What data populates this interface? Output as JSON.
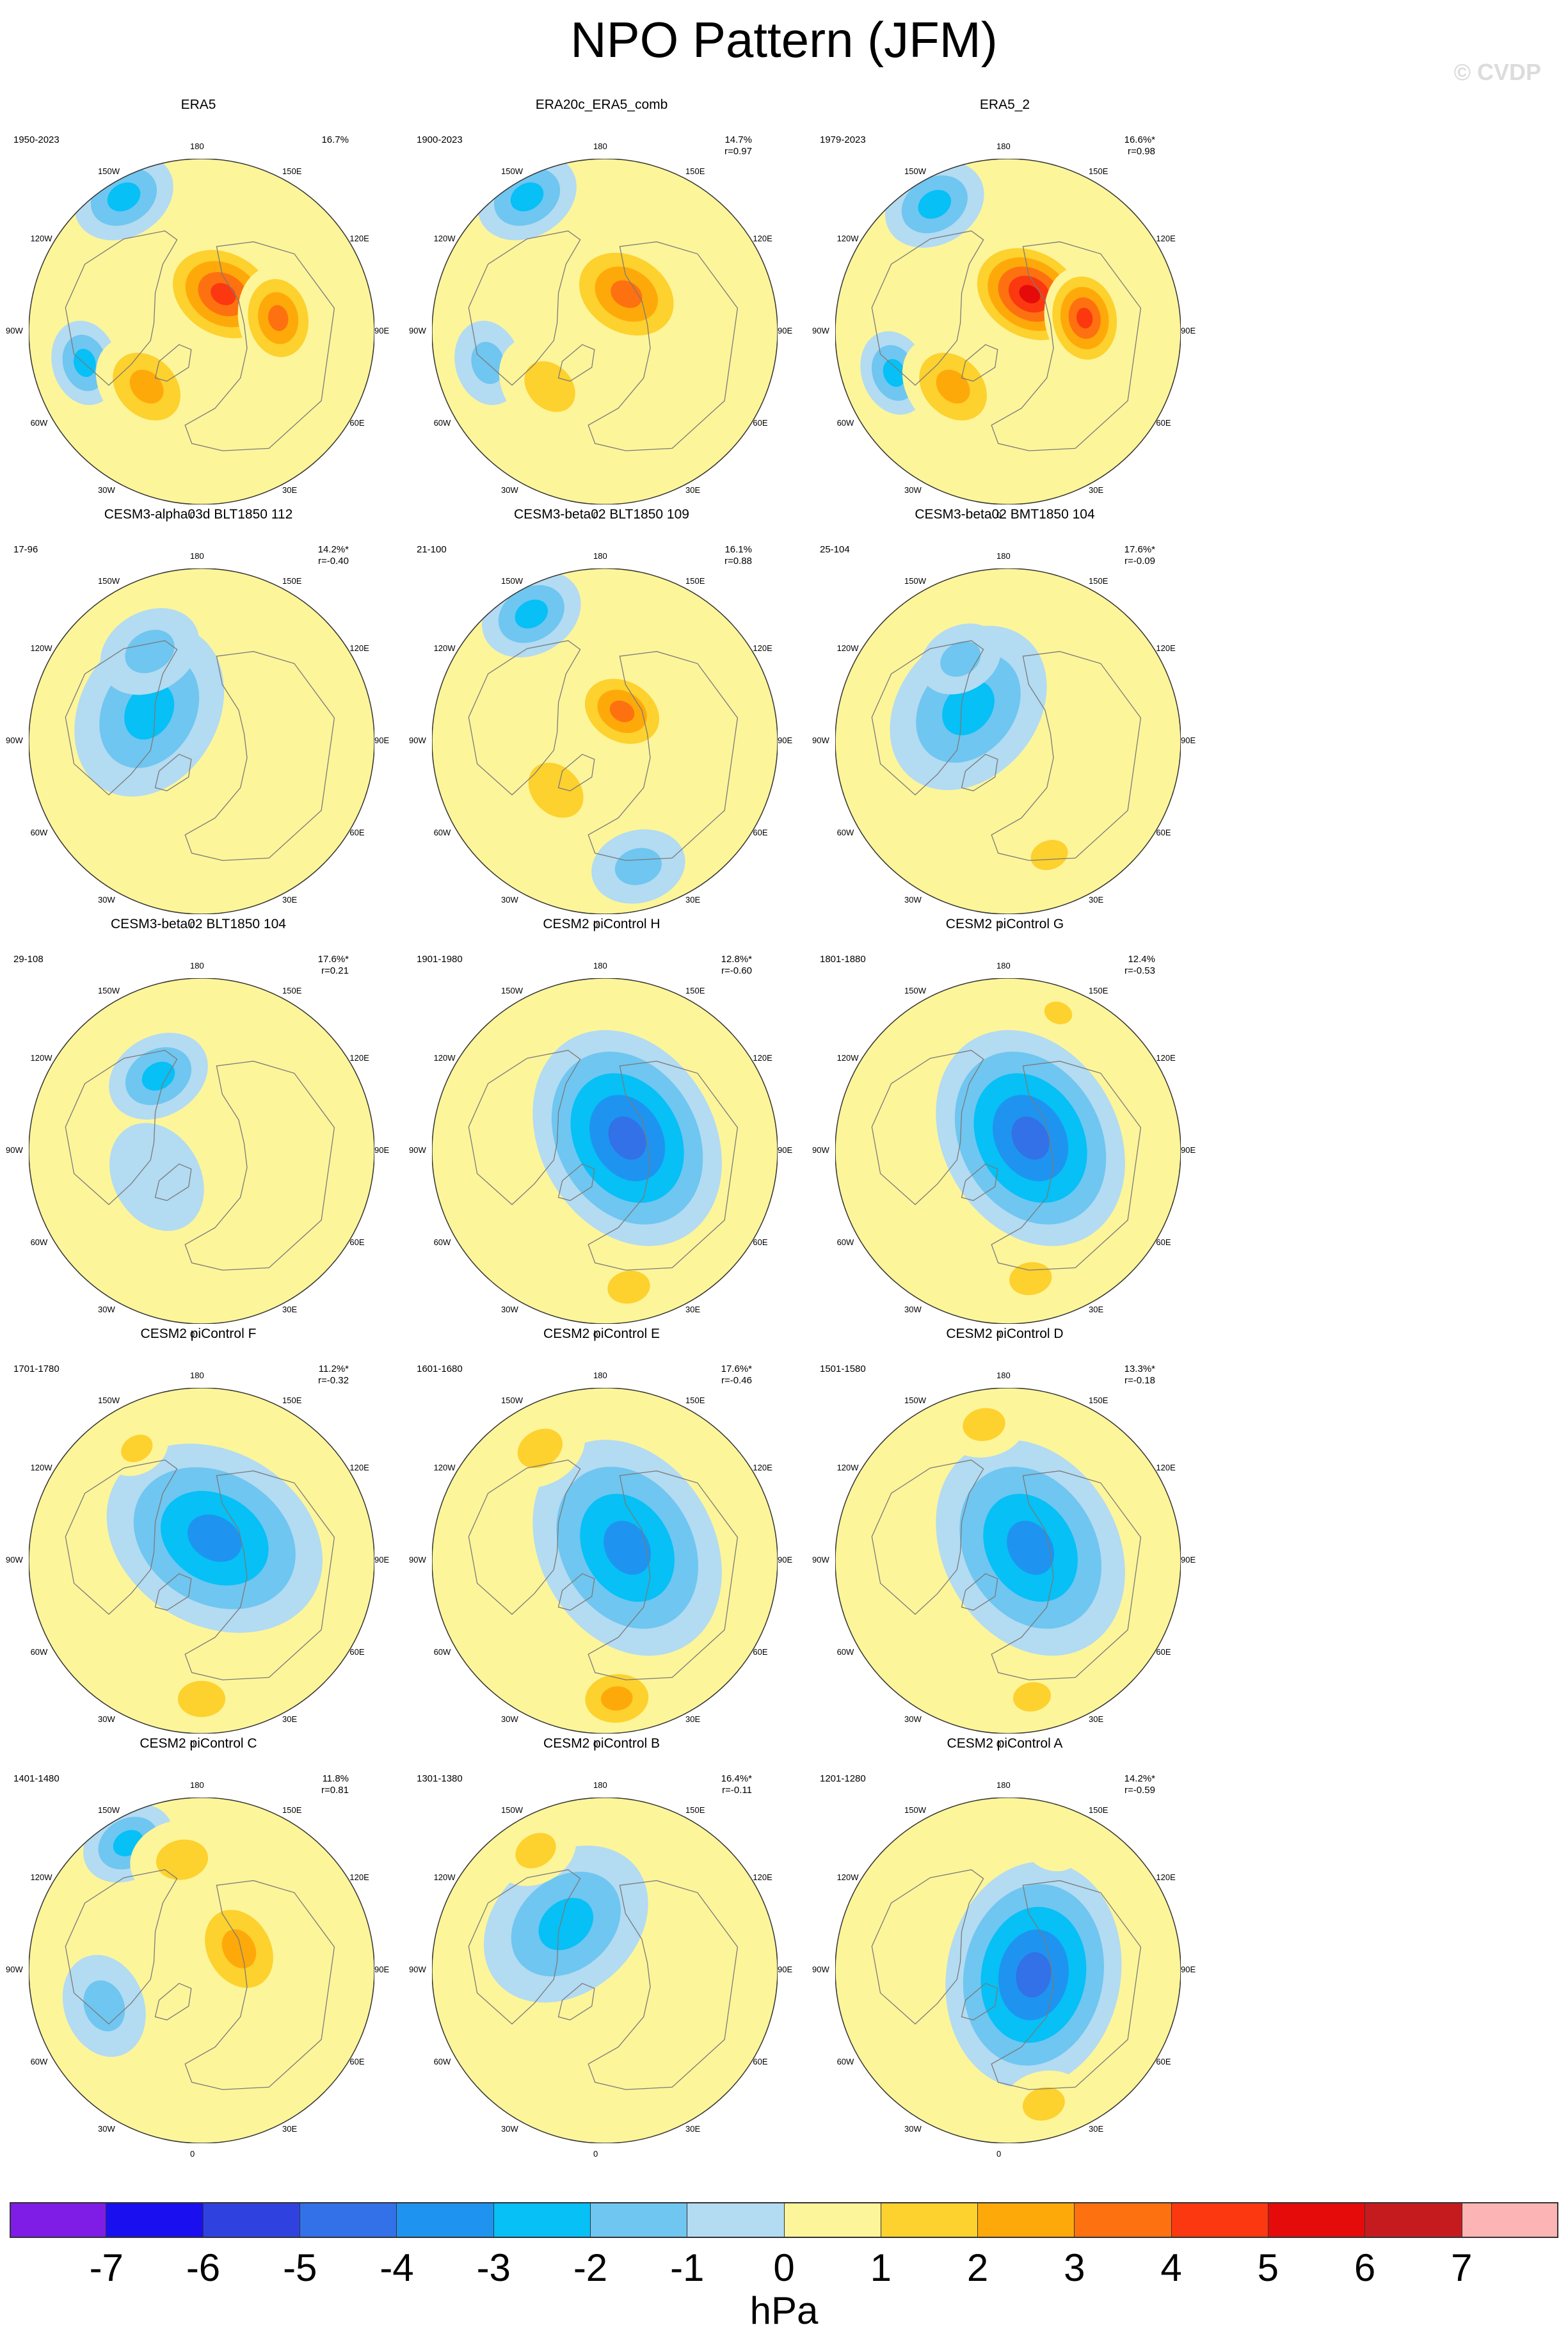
{
  "title": "NPO Pattern (JFM)",
  "watermark": "© CVDP",
  "lon_labels": [
    "180",
    "150E",
    "120E",
    "90E",
    "60E",
    "30E",
    "0",
    "30W",
    "60W",
    "90W",
    "120W",
    "150W"
  ],
  "colors": {
    "ocean_background": "#b3dbf2",
    "land_outline": "#7a7a7a",
    "frame": "#333333",
    "panel_background": "#fdf59a"
  },
  "colorbar": {
    "ticks": [
      "-7",
      "-6",
      "-5",
      "-4",
      "-3",
      "-2",
      "-1",
      "0",
      "1",
      "2",
      "3",
      "4",
      "5",
      "6",
      "7"
    ],
    "colors": [
      "#7f1ce6",
      "#1a0fef",
      "#2f42e0",
      "#3271e8",
      "#1e94f0",
      "#06c0f6",
      "#6fc6f0",
      "#b3dbf2",
      "#fdf59a",
      "#fdd12e",
      "#fea90a",
      "#fe7110",
      "#fc3810",
      "#e50b0b",
      "#c61b1e",
      "#fdb4b4"
    ],
    "unit": "hPa"
  },
  "panels": [
    {
      "title": "ERA5",
      "period": "1950-2023",
      "pct": "16.7%",
      "r": "",
      "lows": [
        [
          0.9,
          -150,
          0.55,
          -3.0
        ],
        [
          0.7,
          -75,
          0.45,
          -2.5
        ]
      ],
      "highs": [
        [
          0.45,
          -45,
          0.6,
          2.5
        ],
        [
          0.25,
          150,
          0.7,
          5.0
        ],
        [
          0.45,
          100,
          0.55,
          4.0
        ]
      ]
    },
    {
      "title": "ERA20c_ERA5_comb",
      "period": "1900-2023",
      "pct": "14.7%",
      "r": "r=0.97",
      "lows": [
        [
          0.9,
          -150,
          0.55,
          -2.5
        ],
        [
          0.7,
          -75,
          0.45,
          -2.0
        ]
      ],
      "highs": [
        [
          0.45,
          -45,
          0.6,
          2.0
        ],
        [
          0.25,
          150,
          0.7,
          4.0
        ]
      ]
    },
    {
      "title": "ERA5_2",
      "period": "1979-2023",
      "pct": "16.6%*",
      "r": "r=0.98",
      "lows": [
        [
          0.85,
          -150,
          0.55,
          -3.0
        ],
        [
          0.7,
          -70,
          0.45,
          -2.5
        ]
      ],
      "highs": [
        [
          0.45,
          -45,
          0.6,
          2.5
        ],
        [
          0.25,
          150,
          0.7,
          6.0
        ],
        [
          0.45,
          100,
          0.55,
          4.5
        ]
      ]
    },
    {
      "title": "CESM3-alpha03d BLT1850 112",
      "period": "17-96",
      "pct": "14.2%*",
      "r": "r=-0.40",
      "lows": [
        [
          0.35,
          -120,
          0.95,
          -2.5
        ],
        [
          0.6,
          -150,
          0.55,
          -2.0
        ]
      ],
      "highs": []
    },
    {
      "title": "CESM3-beta02 BLT1850 109",
      "period": "21-100",
      "pct": "16.1%",
      "r": "r=0.88",
      "lows": [
        [
          0.85,
          -150,
          0.55,
          -2.5
        ],
        [
          0.75,
          15,
          0.5,
          -1.5
        ]
      ],
      "highs": [
        [
          0.4,
          -45,
          0.65,
          2.0
        ],
        [
          0.2,
          150,
          0.55,
          3.5
        ]
      ]
    },
    {
      "title": "CESM3-beta02 BMT1850 104",
      "period": "25-104",
      "pct": "17.6%*",
      "r": "r=-0.09",
      "lows": [
        [
          0.3,
          -130,
          0.95,
          -2.5
        ],
        [
          0.55,
          -150,
          0.45,
          -2.0
        ]
      ],
      "highs": [
        [
          0.7,
          20,
          0.4,
          1.5
        ]
      ]
    },
    {
      "title": "CESM3-beta02 BLT1850 104",
      "period": "29-108",
      "pct": "17.6%*",
      "r": "r=0.21",
      "lows": [
        [
          0.5,
          -150,
          0.55,
          -2.5
        ],
        [
          0.3,
          -60,
          0.6,
          -1.0
        ]
      ],
      "highs": []
    },
    {
      "title": "CESM2 piControl H",
      "period": "1901-1980",
      "pct": "12.8%*",
      "r": "r=-0.60",
      "lows": [
        [
          0.15,
          120,
          1.2,
          -5.0
        ]
      ],
      "highs": [
        [
          0.8,
          10,
          0.45,
          2.0
        ]
      ]
    },
    {
      "title": "CESM2 piControl G",
      "period": "1801-1880",
      "pct": "12.4%",
      "r": "r=-0.53",
      "lows": [
        [
          0.15,
          120,
          1.2,
          -5.0
        ]
      ],
      "highs": [
        [
          0.85,
          160,
          0.3,
          1.5
        ],
        [
          0.75,
          10,
          0.45,
          1.5
        ]
      ]
    },
    {
      "title": "CESM2 piControl F",
      "period": "1701-1780",
      "pct": "11.2%*",
      "r": "r=-0.32",
      "lows": [
        [
          0.15,
          150,
          1.2,
          -3.5
        ]
      ],
      "highs": [
        [
          0.75,
          -150,
          0.35,
          1.5
        ],
        [
          0.8,
          0,
          0.5,
          2.0
        ]
      ]
    },
    {
      "title": "CESM2 piControl E",
      "period": "1601-1680",
      "pct": "17.6%*",
      "r": "r=-0.46",
      "lows": [
        [
          0.15,
          120,
          1.2,
          -4.0
        ]
      ],
      "highs": [
        [
          0.75,
          -150,
          0.5,
          1.5
        ],
        [
          0.8,
          5,
          0.5,
          2.5
        ]
      ]
    },
    {
      "title": "CESM2 piControl D",
      "period": "1501-1580",
      "pct": "13.3%*",
      "r": "r=-0.18",
      "lows": [
        [
          0.15,
          120,
          1.2,
          -3.5
        ]
      ],
      "highs": [
        [
          0.8,
          -170,
          0.45,
          1.5
        ],
        [
          0.8,
          10,
          0.4,
          2.0
        ]
      ]
    },
    {
      "title": "CESM2 piControl C",
      "period": "1401-1480",
      "pct": "11.8%",
      "r": "r=0.81",
      "lows": [
        [
          0.85,
          -150,
          0.5,
          -3.0
        ],
        [
          0.6,
          -70,
          0.55,
          -1.5
        ]
      ],
      "highs": [
        [
          0.25,
          120,
          0.65,
          3.0
        ],
        [
          0.65,
          -170,
          0.55,
          1.5
        ]
      ]
    },
    {
      "title": "CESM2 piControl B",
      "period": "1301-1380",
      "pct": "16.4%*",
      "r": "r=-0.11",
      "lows": [
        [
          0.35,
          -140,
          0.95,
          -2.5
        ]
      ],
      "highs": [
        [
          0.8,
          -150,
          0.45,
          1.5
        ],
        [
          0.7,
          10,
          0.4,
          1.0
        ]
      ]
    },
    {
      "title": "CESM2 piControl A",
      "period": "1201-1280",
      "pct": "14.2%*",
      "r": "r=-0.59",
      "lows": [
        [
          0.15,
          80,
          1.2,
          -5.0
        ]
      ],
      "highs": [
        [
          0.8,
          15,
          0.45,
          1.5
        ],
        [
          0.75,
          160,
          0.3,
          1.0
        ]
      ]
    }
  ]
}
